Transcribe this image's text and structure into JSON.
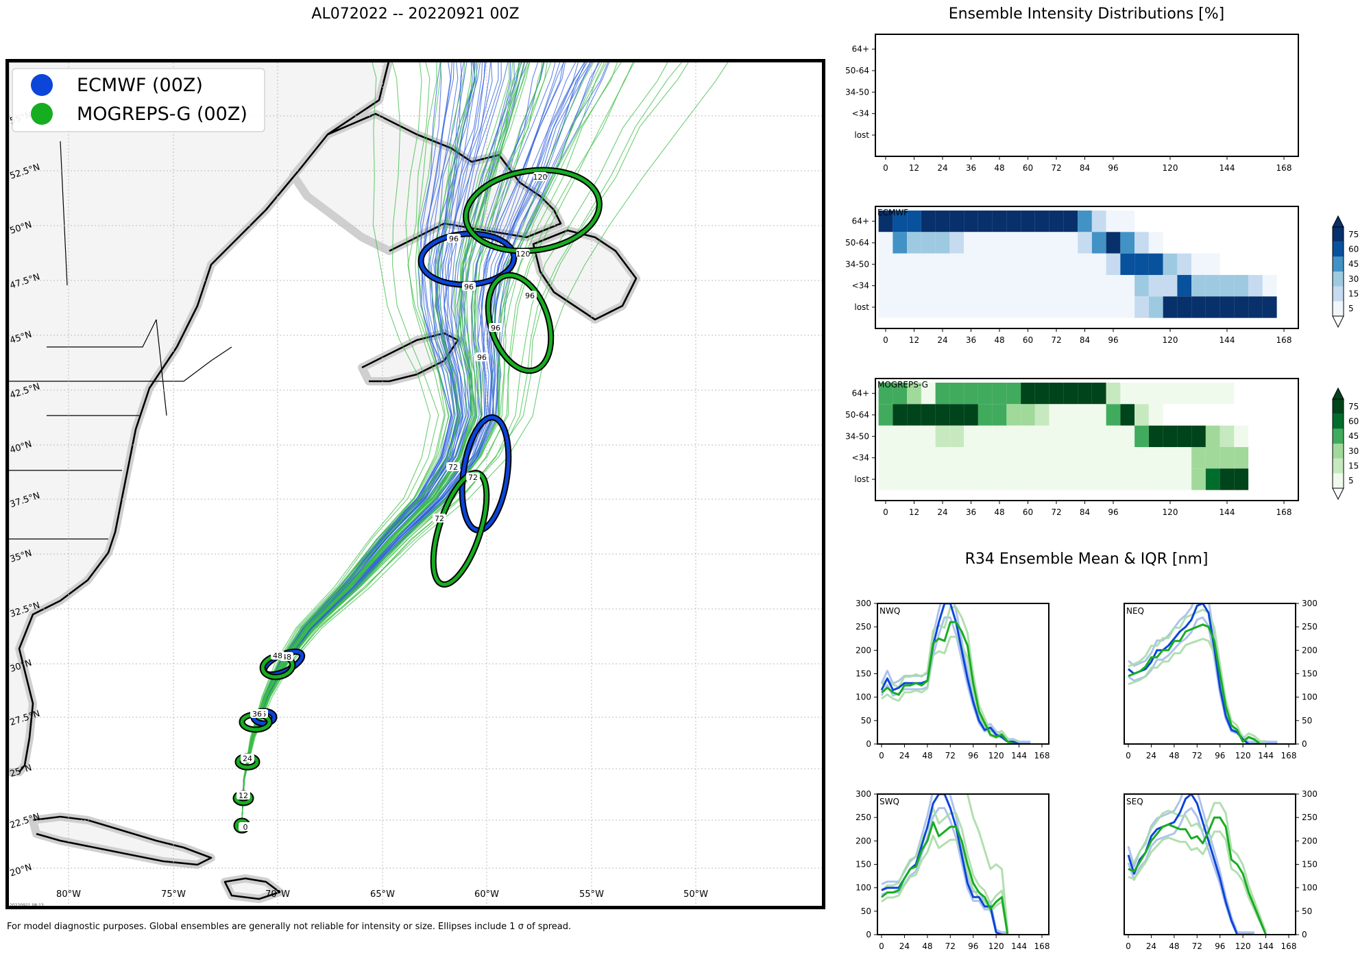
{
  "header": {
    "main_title": "AL072022 -- 20220921 00Z",
    "intensity_title": "Ensemble Intensity Distributions [%]",
    "r34_title": "R34 Ensemble Mean & IQR [nm]"
  },
  "footnote": "For model diagnostic purposes. Global ensembles are generally not reliable for intensity or size. Ellipses include 1 σ of spread.",
  "map": {
    "stamp": "20220921 08:13",
    "legend": [
      {
        "label": "ECMWF (00Z)",
        "color": "#0b45d9"
      },
      {
        "label": "MOGREPS-G (00Z)",
        "color": "#17ad21"
      }
    ],
    "lon_labels": [
      "80°W",
      "75°W",
      "70°W",
      "65°W",
      "60°W",
      "55°W",
      "50°W"
    ],
    "lat_labels": [
      "20°N",
      "22.5°N",
      "25°N",
      "27.5°N",
      "30°N",
      "32.5°N",
      "35°N",
      "37.5°N",
      "40°N",
      "42.5°N",
      "45°N",
      "47.5°N",
      "50°N",
      "52.5°N",
      "55°N"
    ],
    "ellipse_hours": {
      "ecmwf": [
        "0",
        "12",
        "24",
        "36",
        "48",
        "72",
        "96",
        "96"
      ],
      "mogreps": [
        "0",
        "12",
        "24",
        "36",
        "48",
        "72",
        "72",
        "96",
        "96",
        "96",
        "120",
        "120"
      ]
    }
  },
  "intensity": {
    "row_labels": [
      "64+",
      "50-64",
      "34-50",
      "<34",
      "lost"
    ],
    "hour_ticks": [
      "0",
      "12",
      "24",
      "36",
      "48",
      "60",
      "72",
      "84",
      "96",
      "120",
      "144",
      "168"
    ],
    "hours": [
      0,
      6,
      12,
      18,
      24,
      30,
      36,
      42,
      48,
      54,
      60,
      66,
      72,
      78,
      84,
      90,
      96,
      102,
      108,
      114,
      120,
      126,
      132,
      138,
      144,
      150,
      156,
      162,
      168
    ],
    "colorbar_labels": [
      "75",
      "60",
      "45",
      "30",
      "15",
      "5"
    ],
    "panels": [
      {
        "name": "",
        "cmap": "none",
        "grid": []
      },
      {
        "name": "ECMWF",
        "cmap": "blue",
        "grid": [
          [
            90,
            60,
            60,
            95,
            95,
            95,
            95,
            95,
            95,
            95,
            95,
            95,
            95,
            95,
            50,
            15,
            5,
            5,
            0,
            0,
            0,
            0,
            0,
            0,
            0,
            0,
            0,
            0,
            0
          ],
          [
            5,
            50,
            30,
            30,
            30,
            15,
            5,
            5,
            5,
            5,
            5,
            5,
            5,
            5,
            15,
            50,
            95,
            50,
            15,
            5,
            0,
            0,
            0,
            0,
            0,
            0,
            0,
            0,
            0
          ],
          [
            5,
            5,
            5,
            5,
            5,
            5,
            5,
            5,
            5,
            5,
            5,
            5,
            5,
            5,
            5,
            5,
            15,
            60,
            70,
            60,
            40,
            15,
            5,
            5,
            0,
            0,
            0,
            0,
            0
          ],
          [
            5,
            5,
            5,
            5,
            5,
            5,
            5,
            5,
            5,
            5,
            5,
            5,
            5,
            5,
            5,
            5,
            5,
            5,
            30,
            15,
            15,
            60,
            30,
            30,
            30,
            30,
            15,
            5,
            0
          ],
          [
            5,
            5,
            5,
            5,
            5,
            5,
            5,
            5,
            5,
            5,
            5,
            5,
            5,
            5,
            5,
            5,
            5,
            5,
            15,
            30,
            80,
            80,
            80,
            80,
            80,
            95,
            95,
            95,
            0
          ]
        ]
      },
      {
        "name": "MOGREPS-G",
        "cmap": "green",
        "grid": [
          [
            45,
            55,
            30,
            5,
            55,
            55,
            55,
            55,
            55,
            55,
            80,
            95,
            95,
            95,
            95,
            95,
            15,
            5,
            5,
            5,
            5,
            5,
            5,
            5,
            5,
            0,
            0,
            0,
            0
          ],
          [
            50,
            75,
            90,
            95,
            75,
            75,
            75,
            55,
            55,
            40,
            30,
            15,
            5,
            5,
            5,
            5,
            55,
            75,
            15,
            5,
            0,
            0,
            0,
            0,
            0,
            0,
            0,
            0,
            0
          ],
          [
            5,
            5,
            5,
            5,
            15,
            15,
            5,
            5,
            5,
            5,
            5,
            5,
            5,
            5,
            5,
            5,
            5,
            5,
            55,
            95,
            95,
            95,
            80,
            30,
            15,
            5,
            0,
            0,
            0
          ],
          [
            5,
            5,
            5,
            5,
            5,
            5,
            5,
            5,
            5,
            5,
            5,
            5,
            5,
            5,
            5,
            5,
            5,
            5,
            5,
            5,
            5,
            5,
            30,
            30,
            30,
            30,
            0,
            0,
            0
          ],
          [
            5,
            5,
            5,
            5,
            5,
            5,
            5,
            5,
            5,
            5,
            5,
            5,
            5,
            5,
            5,
            5,
            5,
            5,
            5,
            5,
            5,
            5,
            30,
            60,
            75,
            95,
            0,
            0,
            0
          ]
        ]
      }
    ]
  },
  "r34": {
    "hours": [
      0,
      6,
      12,
      18,
      24,
      30,
      36,
      42,
      48,
      54,
      60,
      66,
      72,
      78,
      84,
      90,
      96,
      102,
      108,
      114,
      120,
      126,
      132,
      138,
      144,
      150,
      156,
      162,
      168
    ],
    "x_ticks": [
      "0",
      "24",
      "48",
      "72",
      "96",
      "120",
      "144",
      "168"
    ],
    "y_ticks": [
      "0",
      "50",
      "100",
      "150",
      "200",
      "250",
      "300"
    ],
    "ylim": [
      0,
      300
    ],
    "panels": [
      {
        "name": "NWQ",
        "ecmwf": [
          115,
          140,
          115,
          120,
          130,
          130,
          130,
          130,
          135,
          210,
          260,
          300,
          300,
          260,
          200,
          140,
          90,
          50,
          30,
          35,
          20,
          15,
          5,
          5,
          0,
          0,
          0,
          null,
          null
        ],
        "mogreps": [
          110,
          120,
          110,
          105,
          125,
          125,
          130,
          125,
          135,
          215,
          225,
          220,
          260,
          260,
          240,
          210,
          130,
          70,
          45,
          20,
          15,
          20,
          5,
          0,
          0,
          null,
          null,
          null,
          null
        ]
      },
      {
        "name": "NEQ",
        "ecmwf": [
          160,
          150,
          155,
          160,
          175,
          200,
          200,
          210,
          225,
          240,
          250,
          265,
          295,
          300,
          280,
          205,
          120,
          60,
          30,
          25,
          10,
          0,
          0,
          0,
          0,
          0,
          0,
          null,
          null
        ],
        "mogreps": [
          145,
          150,
          155,
          165,
          185,
          185,
          200,
          200,
          220,
          220,
          240,
          245,
          250,
          255,
          250,
          220,
          150,
          80,
          40,
          30,
          5,
          15,
          10,
          0,
          0,
          null,
          null,
          null,
          null
        ]
      },
      {
        "name": "SWQ",
        "ecmwf": [
          95,
          100,
          100,
          100,
          120,
          140,
          150,
          190,
          230,
          280,
          300,
          300,
          270,
          230,
          170,
          110,
          80,
          80,
          60,
          60,
          5,
          0,
          0,
          null,
          null,
          null,
          null,
          null,
          null
        ],
        "mogreps": [
          80,
          90,
          90,
          95,
          120,
          140,
          145,
          180,
          200,
          240,
          210,
          220,
          230,
          230,
          200,
          150,
          110,
          90,
          80,
          55,
          70,
          80,
          0,
          null,
          null,
          null,
          null,
          null,
          null
        ],
        "mogreps_iqr": [
          null,
          null,
          null,
          null,
          null,
          null,
          null,
          null,
          null,
          null,
          null,
          null,
          null,
          null,
          null,
          300,
          250,
          220,
          180,
          140,
          150,
          140,
          10,
          null,
          null,
          null,
          null,
          null,
          null
        ]
      },
      {
        "name": "SEQ",
        "ecmwf": [
          170,
          130,
          160,
          175,
          210,
          225,
          230,
          235,
          240,
          260,
          290,
          300,
          280,
          240,
          200,
          160,
          120,
          70,
          30,
          0,
          0,
          0,
          0,
          null,
          null,
          null,
          null,
          null,
          null
        ],
        "mogreps": [
          140,
          135,
          155,
          175,
          200,
          215,
          230,
          235,
          230,
          225,
          225,
          205,
          210,
          195,
          220,
          250,
          250,
          230,
          160,
          150,
          130,
          90,
          60,
          30,
          0,
          null,
          null,
          null,
          null
        ]
      }
    ]
  }
}
